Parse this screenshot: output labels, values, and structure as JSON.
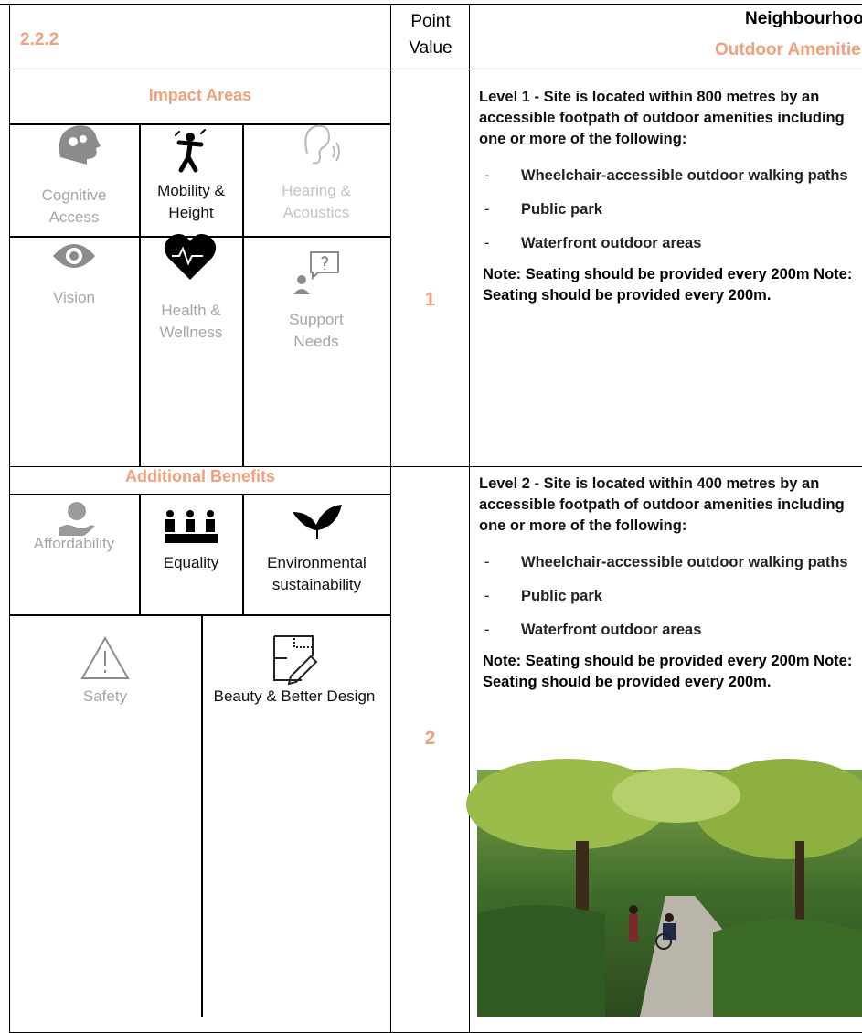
{
  "header": {
    "section": "2.2.2",
    "point_label": "Point Value",
    "title": "Neighbourhood",
    "subtitle": "Outdoor Amenities"
  },
  "impact_areas": {
    "heading": "Impact Areas",
    "items": [
      "Cognitive Access",
      "Mobility & Height",
      "Hearing & Acoustics",
      "Vision",
      "Health & Wellness",
      "Support Needs"
    ]
  },
  "additional_benefits": {
    "heading": "Additional Benefits",
    "items": [
      "Affordability",
      "Equality",
      "Environmental sustainability",
      "Safety",
      "Beauty & Better Design"
    ]
  },
  "levels": [
    {
      "point": "1",
      "intro": "Level 1 - Site is located within 800 metres by an accessible footpath of outdoor amenities including one or more of the following:",
      "bullet": "-",
      "items": [
        "Wheelchair-accessible outdoor walking paths",
        "Public park",
        "Waterfront outdoor areas"
      ],
      "note": "Note: Seating should be provided every 200m Note: Seating should be provided every 200m."
    },
    {
      "point": "2",
      "intro": "Level 2 - Site is located within 400 metres by an accessible footpath of outdoor amenities including one or more of the following:",
      "bullet": "-",
      "items": [
        "Wheelchair-accessible outdoor walking paths",
        "Public park",
        "Waterfront outdoor areas"
      ],
      "note": "Note: Seating should be provided every 200m Note: Seating should be provided every 200m."
    }
  ]
}
